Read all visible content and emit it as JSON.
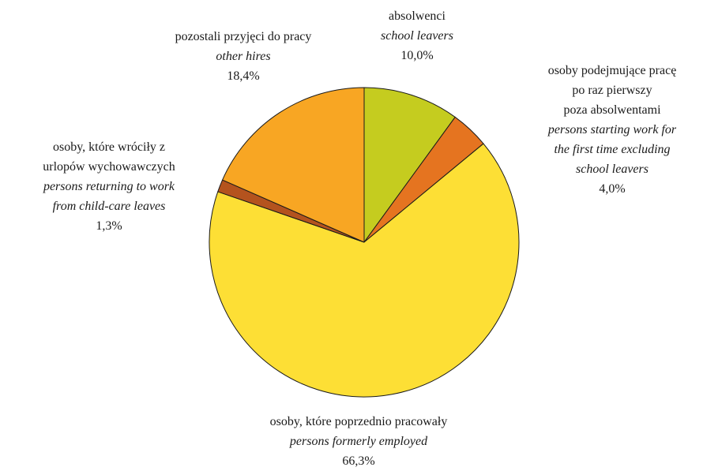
{
  "chart_data": {
    "type": "pie",
    "start_angle_deg": 0,
    "direction": "clockwise",
    "slices": [
      {
        "key": "school-leavers",
        "value": 10.0,
        "color": "#c5cc1f",
        "label_pl": [
          "absolwenci"
        ],
        "label_en": [
          "school leavers"
        ],
        "value_label": "10,0%"
      },
      {
        "key": "first-time-workers",
        "value": 4.0,
        "color": "#e57420",
        "label_pl": [
          "osoby podejmujące pracę",
          "po raz pierwszy",
          "poza absolwentami"
        ],
        "label_en": [
          "persons starting work for",
          "the first time excluding",
          "school leavers"
        ],
        "value_label": "4,0%"
      },
      {
        "key": "formerly-employed",
        "value": 66.3,
        "color": "#fddf35",
        "label_pl": [
          "osoby, które poprzednio pracowały"
        ],
        "label_en": [
          "persons formerly employed"
        ],
        "value_label": "66,3%"
      },
      {
        "key": "child-care-leave",
        "value": 1.3,
        "color": "#b4531e",
        "label_pl": [
          "osoby, które wróciły z",
          "urlopów wychowawczych"
        ],
        "label_en": [
          "persons returning to work",
          "from child-care leaves"
        ],
        "value_label": "1,3%"
      },
      {
        "key": "other-hires",
        "value": 18.4,
        "color": "#f8a623",
        "label_pl": [
          "pozostali przyjęci do pracy"
        ],
        "label_en": [
          "other hires"
        ],
        "value_label": "18,4%"
      }
    ]
  }
}
